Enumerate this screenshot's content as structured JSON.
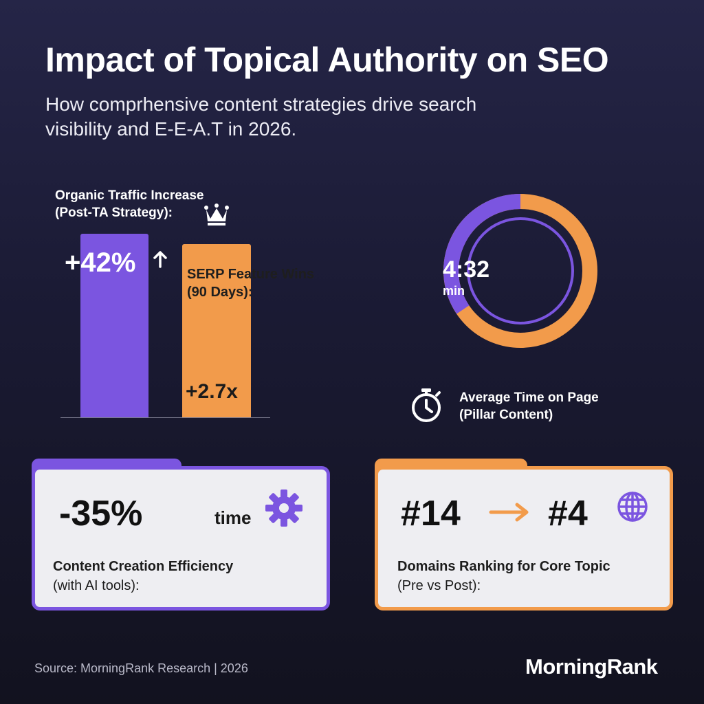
{
  "header": {
    "title": "Impact of Topical Authority on SEO",
    "subtitle": "How comprhensive content strategies drive search visibility and E-E-A.T in 2026."
  },
  "bar_chart": {
    "organic_label_line1": "Organic Traffic Increase",
    "organic_label_line2": "(Post-TA Strategy):",
    "organic_value": "+42%",
    "serp_label_line1": "SERP Feature Wins",
    "serp_label_line2": "(90 Days):",
    "serp_value": "+2.7x"
  },
  "time_on_page": {
    "value": "4:32",
    "unit": "min",
    "label_line1": "Average Time on Page",
    "label_line2": "(Pillar Content)",
    "purple_fraction": 0.43,
    "orange_fraction": 0.57
  },
  "card_efficiency": {
    "value": "-35%",
    "secondary": "time",
    "label_line1": "Content Creation Efficiency",
    "label_line2": "(with AI tools):"
  },
  "card_ranking": {
    "from_rank": "#14",
    "to_rank": "#4",
    "label_line1": "Domains Ranking for Core Topic",
    "label_line2": "(Pre vs Post):"
  },
  "footer": {
    "source": "Source: MorningRank Research | 2026",
    "brand": "MorningRank"
  },
  "colors": {
    "purple": "#7b55e0",
    "orange": "#f29b4b",
    "background": "#1e1e3a",
    "card": "#eeeef2"
  },
  "icons": [
    "crown-icon",
    "arrow-up-icon",
    "stopwatch-icon",
    "gear-icon",
    "arrow-right-icon",
    "globe-icon"
  ]
}
